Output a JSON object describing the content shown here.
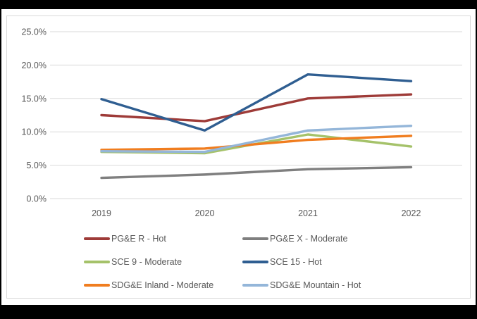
{
  "chart_data": {
    "type": "line",
    "title": "",
    "xlabel": "",
    "ylabel": "",
    "categories": [
      "2019",
      "2020",
      "2021",
      "2022"
    ],
    "series": [
      {
        "name": "PG&E R - Hot",
        "color": "#9E3B38",
        "values": [
          12.5,
          11.6,
          15.0,
          15.6
        ]
      },
      {
        "name": "PG&E X - Moderate",
        "color": "#7F7F7F",
        "values": [
          3.1,
          3.6,
          4.4,
          4.7
        ]
      },
      {
        "name": "SCE 9 - Moderate",
        "color": "#A5C26A",
        "values": [
          7.0,
          6.8,
          9.6,
          7.8
        ]
      },
      {
        "name": "SCE 15 - Hot",
        "color": "#2F5E91",
        "values": [
          14.9,
          10.2,
          18.6,
          17.6
        ]
      },
      {
        "name": "SDG&E Inland - Moderate",
        "color": "#F07D1F",
        "values": [
          7.3,
          7.5,
          8.8,
          9.4
        ]
      },
      {
        "name": "SDG&E Mountain - Hot",
        "color": "#94B6D9",
        "values": [
          7.1,
          7.0,
          10.2,
          10.9
        ]
      }
    ],
    "ylim": [
      0,
      25
    ],
    "y_tick_values": [
      25,
      20,
      15,
      10,
      5,
      0
    ],
    "y_tick_labels": [
      "25.0%",
      "20.0%",
      "15.0%",
      "10.0%",
      "5.0%",
      "0.0%"
    ],
    "grid": true,
    "gridline_color": "#D9D9D9",
    "axis_text_color": "#595959",
    "legend_position": "bottom"
  }
}
